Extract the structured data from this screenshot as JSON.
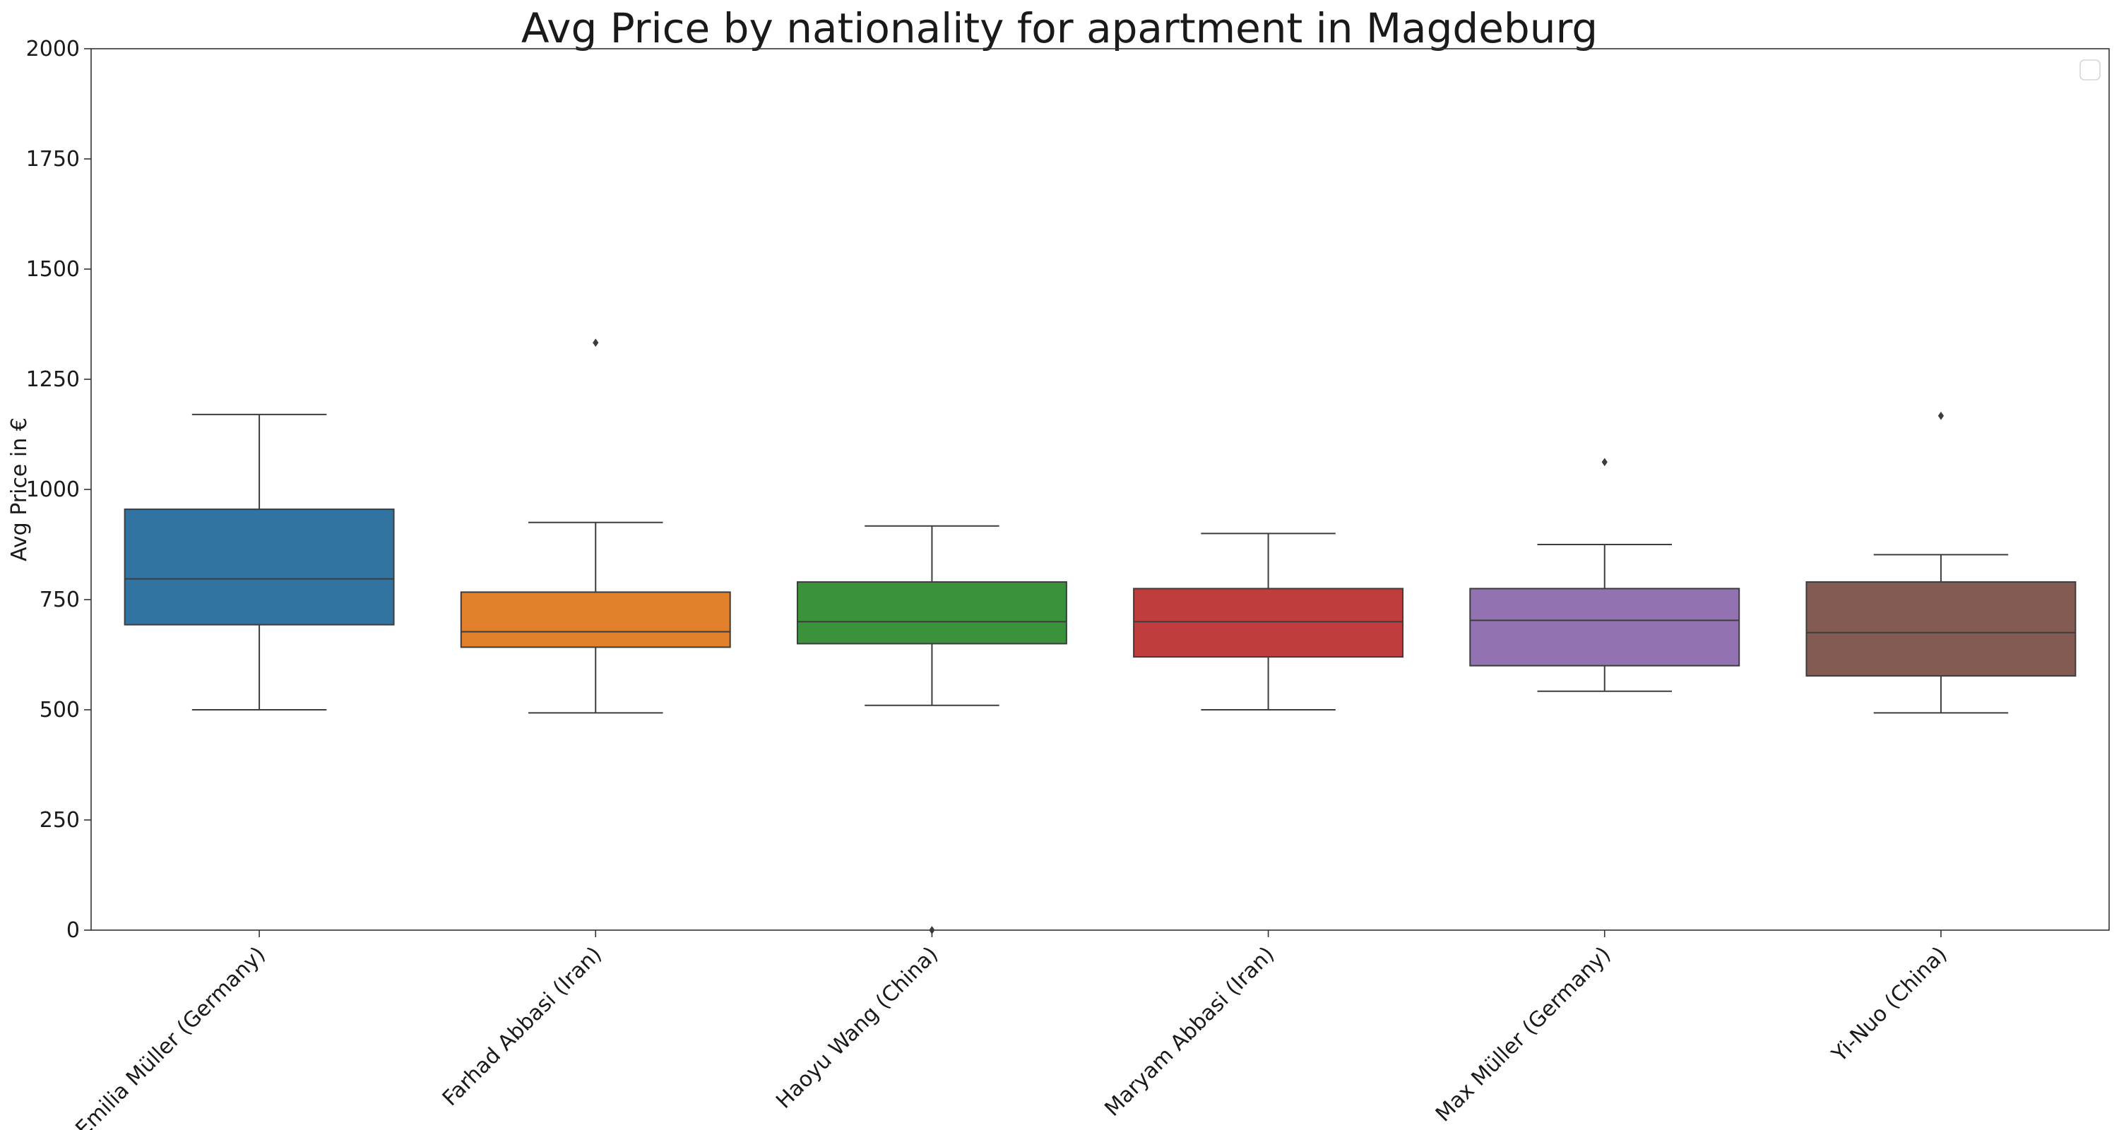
{
  "chart_data": {
    "type": "box",
    "title": "Avg Price by nationality for apartment in Magdeburg",
    "xlabel": "",
    "ylabel": "Avg Price in €",
    "ylim": [
      0,
      2000
    ],
    "yticks": [
      0,
      250,
      500,
      750,
      1000,
      1250,
      1500,
      1750,
      2000
    ],
    "grid": false,
    "legend": "top-right (empty)",
    "categories": [
      "Emilia Müller (Germany)",
      "Farhad Abbasi (Iran)",
      "Haoyu Wang (China)",
      "Maryam Abbasi (Iran)",
      "Max Müller (Germany)",
      "Yi-Nuo (China)"
    ],
    "boxes": [
      {
        "category": "Emilia Müller (Germany)",
        "color": "#3274a1",
        "whisker_low": 500,
        "q1": 693,
        "median": 797,
        "q3": 955,
        "whisker_high": 1170,
        "outliers": []
      },
      {
        "category": "Farhad Abbasi (Iran)",
        "color": "#e1812c",
        "whisker_low": 493,
        "q1": 642,
        "median": 677,
        "q3": 767,
        "whisker_high": 925,
        "outliers": [
          1333
        ]
      },
      {
        "category": "Haoyu Wang (China)",
        "color": "#3a923a",
        "whisker_low": 510,
        "q1": 650,
        "median": 700,
        "q3": 790,
        "whisker_high": 917,
        "outliers": [
          0
        ]
      },
      {
        "category": "Maryam Abbasi (Iran)",
        "color": "#c03d3e",
        "whisker_low": 500,
        "q1": 620,
        "median": 700,
        "q3": 775,
        "whisker_high": 900,
        "outliers": []
      },
      {
        "category": "Max Müller (Germany)",
        "color": "#9372b2",
        "whisker_low": 542,
        "q1": 600,
        "median": 703,
        "q3": 775,
        "whisker_high": 875,
        "outliers": [
          1062
        ]
      },
      {
        "category": "Yi-Nuo (China)",
        "color": "#845b53",
        "whisker_low": 493,
        "q1": 577,
        "median": 675,
        "q3": 790,
        "whisker_high": 852,
        "outliers": [
          1167
        ]
      }
    ]
  }
}
